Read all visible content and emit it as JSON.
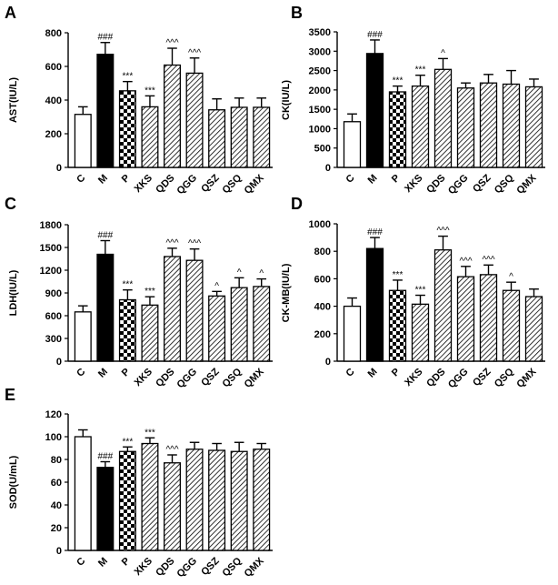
{
  "chart_data": [
    {
      "panel": "A",
      "type": "bar",
      "ylabel": "AST(IU/L)",
      "ylim": [
        0,
        800
      ],
      "yticks": [
        0,
        200,
        400,
        600,
        800
      ],
      "categories": [
        "C",
        "M",
        "P",
        "XKS",
        "QDS",
        "QGG",
        "QSZ",
        "QSQ",
        "QMX"
      ],
      "values": [
        315,
        672,
        455,
        360,
        608,
        560,
        342,
        357,
        357
      ],
      "errors": [
        45,
        70,
        55,
        65,
        100,
        90,
        65,
        55,
        55
      ],
      "annotations": [
        "",
        "###",
        "***",
        "***",
        "^^^",
        "^^^",
        "",
        "",
        ""
      ]
    },
    {
      "panel": "B",
      "type": "bar",
      "ylabel": "CK(IU/L)",
      "ylim": [
        0,
        3500
      ],
      "yticks": [
        0,
        500,
        1000,
        1500,
        2000,
        2500,
        3000,
        3500
      ],
      "categories": [
        "C",
        "M",
        "P",
        "XKS",
        "QDS",
        "QGG",
        "QSZ",
        "QSQ",
        "QMX"
      ],
      "values": [
        1180,
        2940,
        1950,
        2100,
        2530,
        2050,
        2180,
        2150,
        2080
      ],
      "errors": [
        200,
        350,
        150,
        280,
        280,
        130,
        220,
        350,
        200
      ],
      "annotations": [
        "",
        "###",
        "***",
        "***",
        "^",
        "",
        "",
        "",
        ""
      ]
    },
    {
      "panel": "C",
      "type": "bar",
      "ylabel": "LDH(IU/L)",
      "ylim": [
        0,
        1800
      ],
      "yticks": [
        0,
        300,
        600,
        900,
        1200,
        1500,
        1800
      ],
      "categories": [
        "C",
        "M",
        "P",
        "XKS",
        "QDS",
        "QGG",
        "QSZ",
        "QSQ",
        "QMX"
      ],
      "values": [
        650,
        1410,
        810,
        740,
        1380,
        1330,
        860,
        970,
        985
      ],
      "errors": [
        80,
        180,
        130,
        110,
        110,
        150,
        60,
        130,
        100
      ],
      "annotations": [
        "",
        "###",
        "***",
        "***",
        "^^^",
        "^^^",
        "^",
        "^",
        "^"
      ]
    },
    {
      "panel": "D",
      "type": "bar",
      "ylabel": "CK-MB(IU/L)",
      "ylim": [
        0,
        1000
      ],
      "yticks": [
        0,
        200,
        400,
        600,
        800,
        1000
      ],
      "categories": [
        "C",
        "M",
        "P",
        "XKS",
        "QDS",
        "QGG",
        "QSZ",
        "QSQ",
        "QMX"
      ],
      "values": [
        400,
        820,
        515,
        415,
        810,
        615,
        630,
        515,
        470
      ],
      "errors": [
        60,
        80,
        75,
        65,
        100,
        75,
        70,
        60,
        55
      ],
      "annotations": [
        "",
        "###",
        "***",
        "***",
        "^^^",
        "^^^",
        "^^^",
        "^",
        ""
      ]
    },
    {
      "panel": "E",
      "type": "bar",
      "ylabel": "SOD(U/mL)",
      "ylim": [
        0,
        120
      ],
      "yticks": [
        0,
        20,
        40,
        60,
        80,
        100,
        120
      ],
      "categories": [
        "C",
        "M",
        "P",
        "XKS",
        "QDS",
        "QGG",
        "QSZ",
        "QSQ",
        "QMX"
      ],
      "values": [
        100,
        73,
        87,
        94,
        77,
        89,
        88,
        87,
        89
      ],
      "errors": [
        6,
        5,
        4,
        5,
        7,
        6,
        6,
        8,
        5
      ],
      "annotations": [
        "",
        "###",
        "***",
        "***",
        "^^^",
        "",
        "",
        "",
        ""
      ]
    }
  ]
}
